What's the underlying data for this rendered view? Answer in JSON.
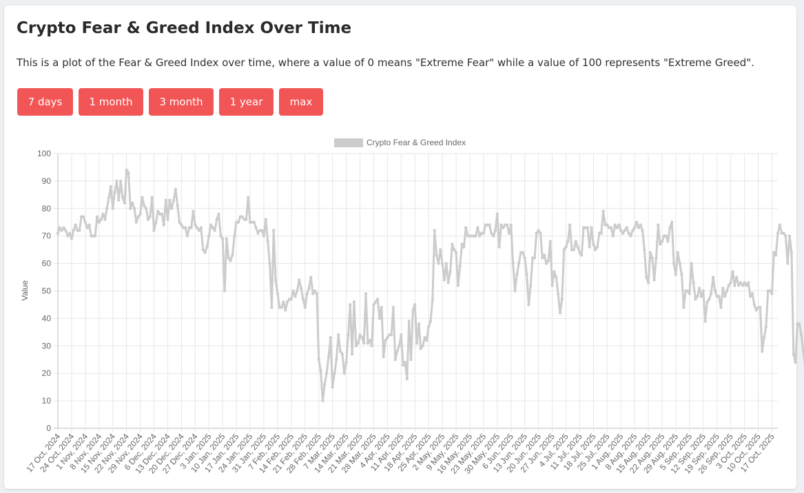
{
  "title": "Crypto Fear & Greed Index Over Time",
  "description": "This is a plot of the Fear & Greed Index over time, where a value of 0 means \"Extreme Fear\" while a value of 100 represents \"Extreme Greed\".",
  "buttons": [
    {
      "label": "7 days"
    },
    {
      "label": "1 month"
    },
    {
      "label": "3 month"
    },
    {
      "label": "1 year"
    },
    {
      "label": "max"
    }
  ],
  "colors": {
    "accent": "#f25555",
    "series": "#cccccc",
    "grid": "#e6e6e6"
  },
  "chart_data": {
    "type": "line",
    "title": "",
    "xlabel": "",
    "ylabel": "Value",
    "ylim": [
      0,
      100
    ],
    "yticks": [
      0,
      10,
      20,
      30,
      40,
      50,
      60,
      70,
      80,
      90,
      100
    ],
    "grid": true,
    "legend_position": "top",
    "x_start": "2024-10-17",
    "x_end": "2025-10-19",
    "x_tick_labels": [
      "17 Oct, 2024",
      "24 Oct, 2024",
      "1 Nov, 2024",
      "8 Nov, 2024",
      "15 Nov, 2024",
      "22 Nov, 2024",
      "29 Nov, 2024",
      "6 Dec, 2024",
      "13 Dec, 2024",
      "20 Dec, 2024",
      "27 Dec, 2024",
      "3 Jan, 2025",
      "10 Jan, 2025",
      "17 Jan, 2025",
      "24 Jan, 2025",
      "31 Jan, 2025",
      "7 Feb, 2025",
      "14 Feb, 2025",
      "21 Feb, 2025",
      "28 Feb, 2025",
      "7 Mar, 2025",
      "14 Mar, 2025",
      "21 Mar, 2025",
      "28 Mar, 2025",
      "4 Apr, 2025",
      "11 Apr, 2025",
      "18 Apr, 2025",
      "25 Apr, 2025",
      "2 May, 2025",
      "9 May, 2025",
      "16 May, 2025",
      "23 May, 2025",
      "30 May, 2025",
      "6 Jun, 2025",
      "13 Jun, 2025",
      "20 Jun, 2025",
      "27 Jun, 2025",
      "4 Jul, 2025",
      "11 Jul, 2025",
      "18 Jul, 2025",
      "25 Jul, 2025",
      "1 Aug, 2025",
      "8 Aug, 2025",
      "15 Aug, 2025",
      "22 Aug, 2025",
      "29 Aug, 2025",
      "5 Sep, 2025",
      "12 Sep, 2025",
      "19 Sep, 2025",
      "26 Sep, 2025",
      "3 Oct, 2025",
      "10 Oct, 2025",
      "17 Oct, 2025"
    ],
    "series": [
      {
        "name": "Crypto Fear & Greed Index",
        "color": "#cccccc",
        "values": [
          71,
          73,
          72,
          73,
          72,
          70,
          71,
          69,
          72,
          74,
          72,
          72,
          77,
          77,
          75,
          73,
          74,
          70,
          70,
          70,
          77,
          75,
          76,
          78,
          76,
          80,
          84,
          88,
          80,
          86,
          90,
          83,
          90,
          84,
          82,
          94,
          93,
          80,
          82,
          80,
          75,
          77,
          78,
          84,
          81,
          80,
          76,
          77,
          84,
          72,
          75,
          79,
          78,
          78,
          74,
          83,
          76,
          83,
          80,
          83,
          87,
          81,
          75,
          74,
          73,
          73,
          70,
          73,
          73,
          79,
          74,
          73,
          72,
          73,
          65,
          64,
          66,
          70,
          74,
          73,
          72,
          76,
          78,
          70,
          69,
          50,
          69,
          62,
          61,
          63,
          70,
          75,
          75,
          77,
          77,
          76,
          76,
          84,
          75,
          75,
          75,
          73,
          71,
          72,
          72,
          70,
          76,
          68,
          60,
          44,
          72,
          54,
          49,
          44,
          44,
          46,
          43,
          46,
          47,
          47,
          50,
          48,
          50,
          54,
          51,
          47,
          44,
          49,
          51,
          55,
          49,
          50,
          49,
          25,
          21,
          10,
          16,
          20,
          26,
          33,
          15,
          20,
          25,
          34,
          28,
          27,
          20,
          24,
          34,
          45,
          27,
          46,
          30,
          31,
          34,
          33,
          31,
          49,
          31,
          32,
          30,
          45,
          46,
          47,
          40,
          44,
          26,
          32,
          33,
          34,
          34,
          44,
          25,
          28,
          30,
          34,
          23,
          24,
          18,
          39,
          25,
          43,
          45,
          31,
          38,
          29,
          30,
          33,
          32,
          37,
          39,
          47,
          72,
          63,
          60,
          65,
          60,
          54,
          60,
          53,
          57,
          67,
          65,
          64,
          52,
          59,
          67,
          66,
          73,
          70,
          70,
          70,
          70,
          70,
          73,
          70,
          71,
          71,
          74,
          74,
          74,
          71,
          70,
          72,
          78,
          66,
          74,
          73,
          74,
          74,
          71,
          74,
          60,
          50,
          56,
          60,
          64,
          64,
          62,
          56,
          45,
          52,
          62,
          62,
          71,
          72,
          71,
          62,
          63,
          60,
          61,
          68,
          52,
          57,
          55,
          49,
          42,
          47,
          65,
          66,
          68,
          74,
          65,
          65,
          68,
          66,
          64,
          63,
          73,
          73,
          73,
          66,
          73,
          67,
          65,
          66,
          71,
          71,
          79,
          74,
          74,
          73,
          73,
          70,
          74,
          73,
          74,
          72,
          71,
          72,
          73,
          71,
          70,
          72,
          73,
          75,
          73,
          74,
          72,
          65,
          55,
          53,
          64,
          62,
          54,
          62,
          74,
          67,
          68,
          70,
          70,
          68,
          73,
          75,
          60,
          56,
          64,
          60,
          56,
          44,
          50,
          50,
          49,
          60,
          53,
          47,
          48,
          51,
          48,
          50,
          39,
          46,
          47,
          49,
          55,
          50,
          48,
          48,
          44,
          51,
          48,
          50,
          52,
          53,
          57,
          52,
          55,
          52,
          53,
          52,
          53,
          52,
          53,
          48,
          49,
          45,
          43,
          44,
          44,
          28,
          33,
          37,
          50,
          50,
          49,
          64,
          63,
          71,
          74,
          71,
          71,
          70,
          60,
          70,
          64,
          27,
          24,
          38,
          38,
          34,
          28,
          22
        ]
      }
    ]
  }
}
